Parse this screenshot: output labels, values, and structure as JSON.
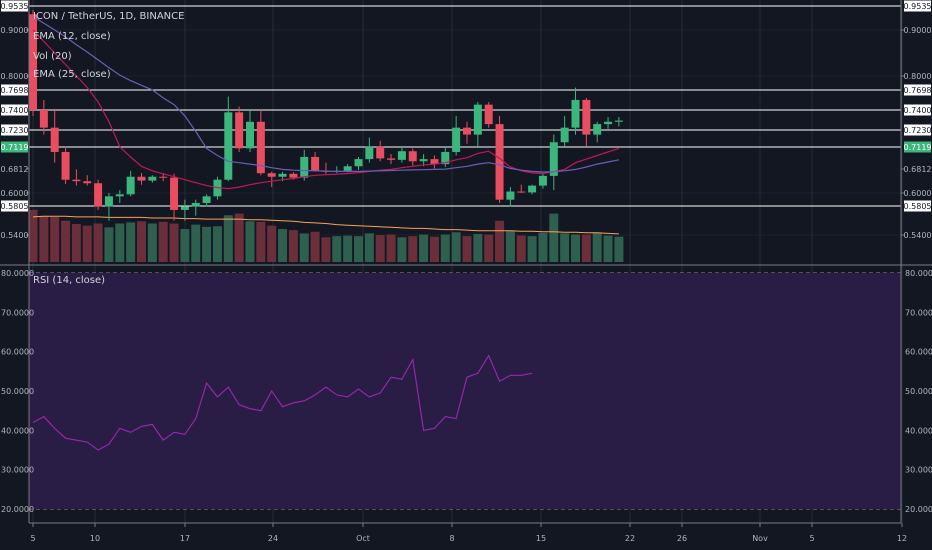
{
  "header": {
    "symbol": "ICON / TetherUS, 1D, BINANCE",
    "ind1": "EMA (12, close)",
    "ind2": "Vol (20)",
    "ind3": "EMA (25, close)",
    "rsi": "RSI (14, close)"
  },
  "colors": {
    "background": "#131722",
    "up": "#3bb77e",
    "down": "#e84e5f",
    "ema12": "#c2185b",
    "ema25": "#6a5fb8",
    "volume_ma": "#f7a35c",
    "rsi_line": "#9c27b0",
    "rsi_band": "#2a1d45"
  },
  "chart_data": [
    {
      "type": "candlestick",
      "price_axis_left": [
        "0.9535",
        "0.9000",
        "0.8000",
        "0.7698",
        "0.7400",
        "0.7230",
        "0.7119",
        "0.6812",
        "0.6000",
        "0.5805",
        "0.5400"
      ],
      "price_axis_right": [
        "0.9535",
        "0.9000",
        "0.8000",
        "0.7698",
        "0.7400",
        "0.7230",
        "0.7119",
        "0.6812",
        "0.6000",
        "0.5805",
        "0.5400"
      ],
      "highlighted_price": "0.7119",
      "horizontal_levels": [
        0.9535,
        0.7698,
        0.74,
        0.723,
        0.7119,
        0.5805
      ],
      "x_labels": [
        "5",
        "10",
        "17",
        "24",
        "Oct",
        "8",
        "15",
        "22",
        "26",
        "Nov",
        "5",
        "12"
      ],
      "candles": [
        {
          "o": 0.935,
          "h": 0.945,
          "l": 0.735,
          "c": 0.74
        },
        {
          "o": 0.74,
          "h": 0.755,
          "l": 0.72,
          "c": 0.725
        },
        {
          "o": 0.725,
          "h": 0.74,
          "l": 0.69,
          "c": 0.705
        },
        {
          "o": 0.705,
          "h": 0.712,
          "l": 0.63,
          "c": 0.645
        },
        {
          "o": 0.645,
          "h": 0.68,
          "l": 0.625,
          "c": 0.64
        },
        {
          "o": 0.64,
          "h": 0.66,
          "l": 0.625,
          "c": 0.633
        },
        {
          "o": 0.633,
          "h": 0.645,
          "l": 0.575,
          "c": 0.58
        },
        {
          "o": 0.58,
          "h": 0.6,
          "l": 0.56,
          "c": 0.595
        },
        {
          "o": 0.595,
          "h": 0.61,
          "l": 0.585,
          "c": 0.598
        },
        {
          "o": 0.598,
          "h": 0.675,
          "l": 0.595,
          "c": 0.655
        },
        {
          "o": 0.655,
          "h": 0.668,
          "l": 0.628,
          "c": 0.642
        },
        {
          "o": 0.642,
          "h": 0.66,
          "l": 0.635,
          "c": 0.655
        },
        {
          "o": 0.655,
          "h": 0.668,
          "l": 0.64,
          "c": 0.652
        },
        {
          "o": 0.652,
          "h": 0.665,
          "l": 0.56,
          "c": 0.575
        },
        {
          "o": 0.575,
          "h": 0.59,
          "l": 0.56,
          "c": 0.58
        },
        {
          "o": 0.58,
          "h": 0.59,
          "l": 0.567,
          "c": 0.585
        },
        {
          "o": 0.585,
          "h": 0.598,
          "l": 0.58,
          "c": 0.595
        },
        {
          "o": 0.595,
          "h": 0.655,
          "l": 0.59,
          "c": 0.645
        },
        {
          "o": 0.645,
          "h": 0.76,
          "l": 0.64,
          "c": 0.738
        },
        {
          "o": 0.738,
          "h": 0.745,
          "l": 0.705,
          "c": 0.71
        },
        {
          "o": 0.71,
          "h": 0.74,
          "l": 0.705,
          "c": 0.73
        },
        {
          "o": 0.73,
          "h": 0.74,
          "l": 0.66,
          "c": 0.667
        },
        {
          "o": 0.667,
          "h": 0.672,
          "l": 0.62,
          "c": 0.655
        },
        {
          "o": 0.655,
          "h": 0.672,
          "l": 0.64,
          "c": 0.665
        },
        {
          "o": 0.665,
          "h": 0.67,
          "l": 0.645,
          "c": 0.652
        },
        {
          "o": 0.652,
          "h": 0.708,
          "l": 0.642,
          "c": 0.698
        },
        {
          "o": 0.698,
          "h": 0.705,
          "l": 0.672,
          "c": 0.675
        },
        {
          "o": 0.675,
          "h": 0.69,
          "l": 0.665,
          "c": 0.672
        },
        {
          "o": 0.672,
          "h": 0.685,
          "l": 0.668,
          "c": 0.675
        },
        {
          "o": 0.675,
          "h": 0.688,
          "l": 0.67,
          "c": 0.685
        },
        {
          "o": 0.685,
          "h": 0.698,
          "l": 0.678,
          "c": 0.695
        },
        {
          "o": 0.695,
          "h": 0.718,
          "l": 0.69,
          "c": 0.712
        },
        {
          "o": 0.712,
          "h": 0.716,
          "l": 0.692,
          "c": 0.696
        },
        {
          "o": 0.696,
          "h": 0.702,
          "l": 0.688,
          "c": 0.694
        },
        {
          "o": 0.694,
          "h": 0.712,
          "l": 0.69,
          "c": 0.706
        },
        {
          "o": 0.706,
          "h": 0.71,
          "l": 0.686,
          "c": 0.692
        },
        {
          "o": 0.692,
          "h": 0.702,
          "l": 0.685,
          "c": 0.695
        },
        {
          "o": 0.695,
          "h": 0.7,
          "l": 0.682,
          "c": 0.688
        },
        {
          "o": 0.688,
          "h": 0.712,
          "l": 0.684,
          "c": 0.705
        },
        {
          "o": 0.705,
          "h": 0.735,
          "l": 0.7,
          "c": 0.725
        },
        {
          "o": 0.725,
          "h": 0.73,
          "l": 0.714,
          "c": 0.72
        },
        {
          "o": 0.72,
          "h": 0.752,
          "l": 0.712,
          "c": 0.748
        },
        {
          "o": 0.748,
          "h": 0.752,
          "l": 0.725,
          "c": 0.728
        },
        {
          "o": 0.728,
          "h": 0.735,
          "l": 0.585,
          "c": 0.59
        },
        {
          "o": 0.59,
          "h": 0.62,
          "l": 0.58,
          "c": 0.605
        },
        {
          "o": 0.605,
          "h": 0.628,
          "l": 0.6,
          "c": 0.602
        },
        {
          "o": 0.602,
          "h": 0.628,
          "l": 0.598,
          "c": 0.625
        },
        {
          "o": 0.625,
          "h": 0.665,
          "l": 0.615,
          "c": 0.658
        },
        {
          "o": 0.658,
          "h": 0.72,
          "l": 0.61,
          "c": 0.715
        },
        {
          "o": 0.715,
          "h": 0.735,
          "l": 0.712,
          "c": 0.725
        },
        {
          "o": 0.725,
          "h": 0.775,
          "l": 0.72,
          "c": 0.755
        },
        {
          "o": 0.755,
          "h": 0.758,
          "l": 0.712,
          "c": 0.72
        },
        {
          "o": 0.72,
          "h": 0.73,
          "l": 0.715,
          "c": 0.728
        },
        {
          "o": 0.728,
          "h": 0.734,
          "l": 0.724,
          "c": 0.73
        },
        {
          "o": 0.73,
          "h": 0.734,
          "l": 0.726,
          "c": 0.731
        }
      ],
      "ema12": [
        0.9,
        0.875,
        0.85,
        0.825,
        0.8,
        0.775,
        0.752,
        0.73,
        0.712,
        0.698,
        0.685,
        0.675,
        0.665,
        0.655,
        0.645,
        0.635,
        0.625,
        0.618,
        0.615,
        0.62,
        0.628,
        0.635,
        0.64,
        0.645,
        0.649,
        0.655,
        0.66,
        0.662,
        0.664,
        0.666,
        0.669,
        0.673,
        0.677,
        0.68,
        0.683,
        0.685,
        0.687,
        0.688,
        0.69,
        0.694,
        0.697,
        0.703,
        0.706,
        0.696,
        0.684,
        0.675,
        0.668,
        0.666,
        0.672,
        0.68,
        0.69,
        0.695,
        0.7,
        0.705,
        0.71
      ],
      "ema25": [
        0.93,
        0.915,
        0.9,
        0.885,
        0.868,
        0.852,
        0.835,
        0.818,
        0.802,
        0.79,
        0.78,
        0.77,
        0.758,
        0.748,
        0.735,
        0.722,
        0.71,
        0.7,
        0.692,
        0.69,
        0.688,
        0.686,
        0.683,
        0.68,
        0.677,
        0.676,
        0.675,
        0.674,
        0.673,
        0.673,
        0.673,
        0.674,
        0.675,
        0.676,
        0.677,
        0.678,
        0.679,
        0.68,
        0.681,
        0.683,
        0.685,
        0.688,
        0.69,
        0.687,
        0.682,
        0.677,
        0.673,
        0.671,
        0.672,
        0.675,
        0.68,
        0.684,
        0.688,
        0.691,
        0.694
      ],
      "volume": [
        95,
        84,
        82,
        75,
        69,
        66,
        70,
        63,
        70,
        72,
        74,
        70,
        73,
        70,
        60,
        68,
        64,
        65,
        85,
        88,
        74,
        73,
        66,
        60,
        58,
        52,
        55,
        45,
        47,
        48,
        47,
        52,
        49,
        50,
        45,
        47,
        50,
        46,
        50,
        54,
        47,
        51,
        50,
        75,
        56,
        48,
        47,
        53,
        88,
        52,
        50,
        50,
        53,
        48,
        46
      ],
      "volume_ma": [
        82,
        83,
        83,
        83,
        82,
        82,
        82,
        81,
        81,
        81,
        81,
        80,
        80,
        80,
        79,
        79,
        78,
        78,
        78,
        78,
        77,
        77,
        76,
        75,
        74,
        72,
        71,
        70,
        68,
        67,
        66,
        65,
        64,
        63,
        62,
        61,
        61,
        60,
        59,
        59,
        58,
        57,
        57,
        57,
        57,
        56,
        56,
        55,
        55,
        54,
        54,
        53,
        53,
        52,
        51
      ]
    },
    {
      "type": "line",
      "title": "RSI (14, close)",
      "y_axis": [
        "80.0000",
        "70.0000",
        "60.0000",
        "50.0000",
        "40.0000",
        "30.0000",
        "20.0000"
      ],
      "ylim": [
        20,
        80
      ],
      "bands": [
        20,
        80
      ],
      "x_labels": [
        "5",
        "10",
        "17",
        "24",
        "Oct",
        "8",
        "15",
        "22",
        "26",
        "Nov",
        "5",
        "12"
      ],
      "values": [
        42,
        43.5,
        40.5,
        38,
        37.5,
        37,
        35,
        36.5,
        40.5,
        39.5,
        41,
        41.5,
        37.5,
        39.5,
        39,
        43,
        52,
        48.5,
        51,
        46.5,
        45.5,
        45,
        50,
        46,
        47,
        47.5,
        49,
        51,
        49,
        48.5,
        50.5,
        48.5,
        49.5,
        53.5,
        53,
        58,
        40,
        40.5,
        43.5,
        43,
        53.5,
        54.5,
        59,
        52.5,
        54,
        54,
        54.5
      ]
    }
  ]
}
